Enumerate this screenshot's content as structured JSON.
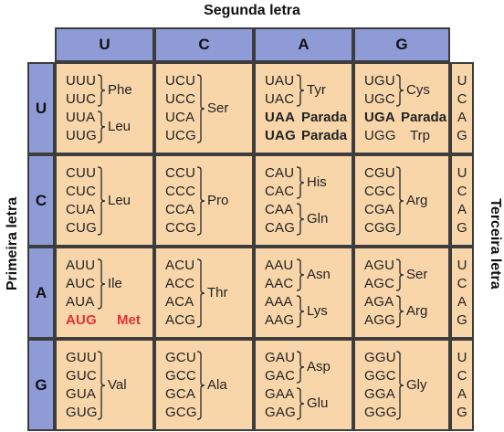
{
  "labels": {
    "second": "Segunda letra",
    "first": "Primeira letra",
    "third": "Terceira letra"
  },
  "bases": [
    "U",
    "C",
    "A",
    "G"
  ],
  "third_col": [
    "U",
    "C",
    "A",
    "G"
  ],
  "cells": [
    [
      {
        "codons": [
          "UUU",
          "UUC",
          "UUA",
          "UUG"
        ],
        "groups": [
          {
            "aa": "Phe",
            "rows": [
              0,
              1
            ]
          },
          {
            "aa": "Leu",
            "rows": [
              2,
              3
            ]
          }
        ]
      },
      {
        "codons": [
          "UCU",
          "UCC",
          "UCA",
          "UCG"
        ],
        "groups": [
          {
            "aa": "Ser",
            "rows": [
              0,
              3
            ]
          }
        ]
      },
      {
        "codons": [
          "UAU",
          "UAC",
          "UAA",
          "UAG"
        ],
        "groups": [
          {
            "aa": "Tyr",
            "rows": [
              0,
              1
            ]
          },
          {
            "aa": "Parada",
            "rows": [
              2
            ],
            "style": "bold"
          },
          {
            "aa": "Parada",
            "rows": [
              3
            ],
            "style": "bold"
          }
        ]
      },
      {
        "codons": [
          "UGU",
          "UGC",
          "UGA",
          "UGG"
        ],
        "groups": [
          {
            "aa": "Cys",
            "rows": [
              0,
              1
            ]
          },
          {
            "aa": "Parada",
            "rows": [
              2
            ],
            "style": "bold"
          },
          {
            "aa": "Trp",
            "rows": [
              3
            ]
          }
        ]
      }
    ],
    [
      {
        "codons": [
          "CUU",
          "CUC",
          "CUA",
          "CUG"
        ],
        "groups": [
          {
            "aa": "Leu",
            "rows": [
              0,
              3
            ]
          }
        ]
      },
      {
        "codons": [
          "CCU",
          "CCC",
          "CCA",
          "CCG"
        ],
        "groups": [
          {
            "aa": "Pro",
            "rows": [
              0,
              3
            ]
          }
        ]
      },
      {
        "codons": [
          "CAU",
          "CAC",
          "CAA",
          "CAG"
        ],
        "groups": [
          {
            "aa": "His",
            "rows": [
              0,
              1
            ]
          },
          {
            "aa": "Gln",
            "rows": [
              2,
              3
            ]
          }
        ]
      },
      {
        "codons": [
          "CGU",
          "CGC",
          "CGA",
          "CGG"
        ],
        "groups": [
          {
            "aa": "Arg",
            "rows": [
              0,
              3
            ]
          }
        ]
      }
    ],
    [
      {
        "codons": [
          "AUU",
          "AUC",
          "AUA",
          "AUG"
        ],
        "groups": [
          {
            "aa": "Ile",
            "rows": [
              0,
              2
            ]
          },
          {
            "aa": "Met",
            "rows": [
              3
            ],
            "style": "red"
          }
        ]
      },
      {
        "codons": [
          "ACU",
          "ACC",
          "ACA",
          "ACG"
        ],
        "groups": [
          {
            "aa": "Thr",
            "rows": [
              0,
              3
            ]
          }
        ]
      },
      {
        "codons": [
          "AAU",
          "AAC",
          "AAA",
          "AAG"
        ],
        "groups": [
          {
            "aa": "Asn",
            "rows": [
              0,
              1
            ]
          },
          {
            "aa": "Lys",
            "rows": [
              2,
              3
            ]
          }
        ]
      },
      {
        "codons": [
          "AGU",
          "AGC",
          "AGA",
          "AGG"
        ],
        "groups": [
          {
            "aa": "Ser",
            "rows": [
              0,
              1
            ]
          },
          {
            "aa": "Arg",
            "rows": [
              2,
              3
            ]
          }
        ]
      }
    ],
    [
      {
        "codons": [
          "GUU",
          "GUC",
          "GUA",
          "GUG"
        ],
        "groups": [
          {
            "aa": "Val",
            "rows": [
              0,
              3
            ]
          }
        ]
      },
      {
        "codons": [
          "GCU",
          "GCC",
          "GCA",
          "GCG"
        ],
        "groups": [
          {
            "aa": "Ala",
            "rows": [
              0,
              3
            ]
          }
        ]
      },
      {
        "codons": [
          "GAU",
          "GAC",
          "GAA",
          "GAG"
        ],
        "groups": [
          {
            "aa": "Asp",
            "rows": [
              0,
              1
            ]
          },
          {
            "aa": "Glu",
            "rows": [
              2,
              3
            ]
          }
        ]
      },
      {
        "codons": [
          "GGU",
          "GGC",
          "GGA",
          "GGG"
        ],
        "groups": [
          {
            "aa": "Gly",
            "rows": [
              0,
              3
            ]
          }
        ]
      }
    ]
  ],
  "colors": {
    "header": "#8f9bd6",
    "cell": "#f8d6aa",
    "border": "#3d3d3d",
    "start": "#e2322f"
  }
}
